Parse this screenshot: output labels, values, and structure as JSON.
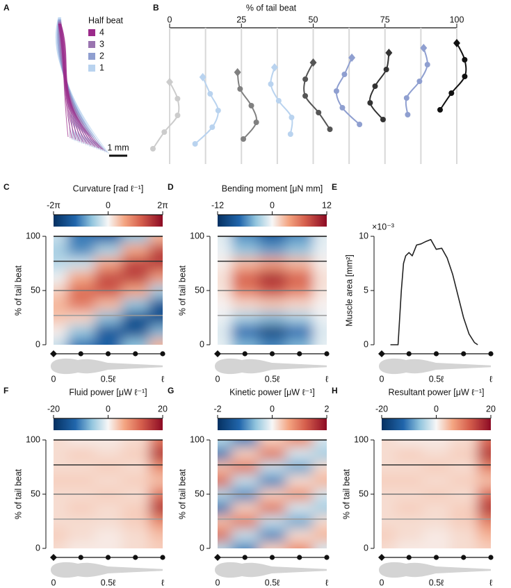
{
  "chart_data": [
    {
      "panel": "A",
      "type": "midlines",
      "legend_title": "Half beat",
      "series": [
        {
          "name": "4",
          "color": "#9b2a8a"
        },
        {
          "name": "3",
          "color": "#9a74b0"
        },
        {
          "name": "2",
          "color": "#8f9fd0"
        },
        {
          "name": "1",
          "color": "#b9d3ef"
        }
      ],
      "scale_bar_label": "1 mm"
    },
    {
      "panel": "B",
      "type": "snapshots",
      "title": "% of tail beat",
      "xlim": [
        0,
        100
      ],
      "xticks": [
        0,
        25,
        50,
        75,
        100
      ],
      "x": [
        0,
        12.5,
        25,
        37.5,
        50,
        62.5,
        75,
        87.5,
        100
      ],
      "colors": [
        "#cccccc",
        "#b9d3ef",
        "#808080",
        "#b9d3ef",
        "#555555",
        "#8f9fd0",
        "#333333",
        "#8f9fd0",
        "#111111"
      ]
    },
    {
      "panel": "C",
      "type": "heatmap",
      "title": "Curvature [rad ℓ⁻¹]",
      "clim": [
        -6.283,
        6.283
      ],
      "cticks": [
        {
          "value": -6.283,
          "label": "-2π"
        },
        0,
        {
          "value": 6.283,
          "label": "2π"
        }
      ],
      "x": [
        0,
        0.25,
        0.5,
        0.75,
        1
      ],
      "y": [
        0,
        12.5,
        25,
        37.5,
        50,
        62.5,
        75,
        87.5,
        100
      ],
      "z": [
        [
          -0.9,
          -3.4,
          -4.0,
          -1.9,
          1.5
        ],
        [
          0.2,
          -1.8,
          -4.3,
          -4.6,
          -2.2
        ],
        [
          1.2,
          0.8,
          -2.0,
          -4.6,
          -4.8
        ],
        [
          1.5,
          3.0,
          1.4,
          -1.9,
          -4.5
        ],
        [
          0.9,
          3.4,
          4.0,
          1.9,
          -1.5
        ],
        [
          -0.2,
          1.8,
          4.3,
          4.6,
          2.2
        ],
        [
          -1.2,
          -0.8,
          2.0,
          4.6,
          4.8
        ],
        [
          -1.5,
          -3.0,
          -1.4,
          1.9,
          4.5
        ],
        [
          -0.9,
          -3.4,
          -4.0,
          -1.9,
          1.5
        ]
      ],
      "ylabel": "% of tail beat",
      "ylim": [
        0,
        100
      ],
      "yticks": [
        0,
        50,
        100
      ],
      "xlim": [
        0,
        1
      ],
      "xticks": [
        0,
        {
          "value": 0.5,
          "label": "0.5ℓ"
        },
        {
          "value": 1,
          "label": "ℓ"
        }
      ],
      "markers": [
        0,
        0.25,
        0.5,
        0.75,
        1
      ],
      "hlines": [
        27,
        50,
        77,
        100
      ],
      "hline_colors": [
        "#9a9a9a",
        "#777777",
        "#333333",
        "#111111"
      ]
    },
    {
      "panel": "D",
      "type": "heatmap",
      "title": "Bending moment [μN mm]",
      "clim": [
        -12,
        12
      ],
      "cticks": [
        -12,
        0,
        12
      ],
      "x": [
        0,
        0.25,
        0.5,
        0.75,
        1
      ],
      "y": [
        0,
        12.5,
        25,
        37.5,
        50,
        62.5,
        75,
        87.5,
        100
      ],
      "z": [
        [
          -0.6,
          -4.2,
          -6,
          -4.2,
          -0.6
        ],
        [
          -1,
          -7,
          -10,
          -7,
          -1
        ],
        [
          -0.4,
          -2.8,
          -4,
          -2.8,
          -0.4
        ],
        [
          0.2,
          1.4,
          2,
          1.4,
          0.2
        ],
        [
          0.8,
          5.6,
          8,
          5.6,
          0.8
        ],
        [
          1,
          7,
          10,
          7,
          1
        ],
        [
          0.4,
          2.8,
          4,
          2.8,
          0.4
        ],
        [
          -0.5,
          -3.5,
          -5,
          -3.5,
          -0.5
        ],
        [
          -0.8,
          -5.6,
          -8,
          -5.6,
          -0.8
        ]
      ],
      "ylabel": "% of tail beat",
      "ylim": [
        0,
        100
      ],
      "yticks": [
        0,
        50,
        100
      ],
      "xlim": [
        0,
        1
      ],
      "xticks": [
        0,
        {
          "value": 0.5,
          "label": "0.5ℓ"
        },
        {
          "value": 1,
          "label": "ℓ"
        }
      ],
      "markers": [
        0,
        0.25,
        0.5,
        0.75,
        1
      ],
      "hlines": [
        27,
        50,
        77,
        100
      ],
      "hline_colors": [
        "#9a9a9a",
        "#777777",
        "#333333",
        "#111111"
      ]
    },
    {
      "panel": "E",
      "type": "line",
      "ylabel": "Muscle area [mm²]",
      "y_multiplier": "×10⁻³",
      "color": "#222222",
      "x": [
        0.08,
        0.15,
        0.18,
        0.2,
        0.22,
        0.25,
        0.28,
        0.32,
        0.36,
        0.4,
        0.45,
        0.5,
        0.55,
        0.6,
        0.65,
        0.7,
        0.75,
        0.8,
        0.85,
        0.88
      ],
      "values": [
        0,
        0,
        5,
        7.5,
        8.2,
        8.5,
        8.2,
        9.2,
        9.3,
        9.5,
        9.7,
        8.8,
        8.9,
        8.0,
        6.5,
        4.5,
        2.5,
        1.0,
        0.2,
        0
      ],
      "ylim": [
        0,
        10
      ],
      "yticks": [
        0,
        5,
        10
      ],
      "xlim": [
        0,
        1
      ],
      "xticks": [
        0,
        {
          "value": 0.5,
          "label": "0.5ℓ"
        },
        {
          "value": 1,
          "label": "ℓ"
        }
      ],
      "markers": [
        0,
        0.25,
        0.5,
        0.75,
        1
      ]
    },
    {
      "panel": "F",
      "type": "heatmap",
      "title": "Fluid power [μW ℓ⁻¹]",
      "clim": [
        -20,
        20
      ],
      "cticks": [
        -20,
        0,
        20
      ],
      "x": [
        0,
        0.25,
        0.5,
        0.75,
        1
      ],
      "y": [
        0,
        12.5,
        25,
        37.5,
        50,
        62.5,
        75,
        87.5,
        100
      ],
      "z": [
        [
          2,
          1,
          1,
          2,
          3
        ],
        [
          3,
          2,
          1,
          2,
          4
        ],
        [
          2,
          2,
          2,
          3,
          8
        ],
        [
          2,
          3,
          2,
          3,
          16
        ],
        [
          2,
          2,
          3,
          2,
          10
        ],
        [
          3,
          3,
          2,
          3,
          4
        ],
        [
          2,
          2,
          3,
          2,
          8
        ],
        [
          2,
          3,
          2,
          3,
          16
        ],
        [
          2,
          1,
          1,
          2,
          10
        ]
      ],
      "ylabel": "% of tail beat",
      "ylim": [
        0,
        100
      ],
      "yticks": [
        0,
        50,
        100
      ],
      "xlim": [
        0,
        1
      ],
      "xticks": [
        0,
        {
          "value": 0.5,
          "label": "0.5ℓ"
        },
        {
          "value": 1,
          "label": "ℓ"
        }
      ],
      "markers": [
        0,
        0.25,
        0.5,
        0.75,
        1
      ],
      "hlines": [
        27,
        50,
        77,
        100
      ],
      "hline_colors": [
        "#9a9a9a",
        "#777777",
        "#333333",
        "#111111"
      ]
    },
    {
      "panel": "G",
      "type": "heatmap",
      "title": "Kinetic power [μW ℓ⁻¹]",
      "clim": [
        -2,
        2
      ],
      "cticks": [
        -2,
        0,
        2
      ],
      "x": [
        0,
        0.25,
        0.5,
        0.75,
        1
      ],
      "y": [
        0,
        12.5,
        25,
        37.5,
        50,
        62.5,
        75,
        87.5,
        100
      ],
      "z": [
        [
          -0.4,
          -1.0,
          0.3,
          0.8,
          -0.2
        ],
        [
          1.1,
          -0.3,
          -1.0,
          0.2,
          0.5
        ],
        [
          0.4,
          1.0,
          -0.3,
          -0.8,
          0.2
        ],
        [
          -1.1,
          0.3,
          1.0,
          -0.2,
          -0.5
        ],
        [
          -0.4,
          -1.0,
          0.3,
          0.8,
          -0.2
        ],
        [
          1.1,
          -0.3,
          -1.0,
          0.2,
          0.5
        ],
        [
          0.4,
          1.0,
          -0.3,
          -0.8,
          0.2
        ],
        [
          -1.1,
          0.3,
          1.0,
          -0.2,
          -0.5
        ],
        [
          -0.4,
          -1.0,
          0.3,
          0.8,
          -0.2
        ]
      ],
      "ylabel": "% of tail beat",
      "ylim": [
        0,
        100
      ],
      "yticks": [
        0,
        50,
        100
      ],
      "xlim": [
        0,
        1
      ],
      "xticks": [
        0,
        {
          "value": 0.5,
          "label": "0.5ℓ"
        },
        {
          "value": 1,
          "label": "ℓ"
        }
      ],
      "markers": [
        0,
        0.25,
        0.5,
        0.75,
        1
      ],
      "hlines": [
        27,
        50,
        77,
        100
      ],
      "hline_colors": [
        "#9a9a9a",
        "#777777",
        "#333333",
        "#111111"
      ]
    },
    {
      "panel": "H",
      "type": "heatmap",
      "title": "Resultant power [μW ℓ⁻¹]",
      "clim": [
        -20,
        20
      ],
      "cticks": [
        -20,
        0,
        20
      ],
      "x": [
        0,
        0.25,
        0.5,
        0.75,
        1
      ],
      "y": [
        0,
        12.5,
        25,
        37.5,
        50,
        62.5,
        75,
        87.5,
        100
      ],
      "z": [
        [
          2,
          1,
          1,
          2,
          3
        ],
        [
          3,
          2,
          1,
          2,
          5
        ],
        [
          2,
          2,
          2,
          3,
          9
        ],
        [
          2,
          3,
          2,
          3,
          16
        ],
        [
          2,
          2,
          3,
          2,
          11
        ],
        [
          3,
          3,
          2,
          3,
          4
        ],
        [
          2,
          2,
          3,
          2,
          9
        ],
        [
          2,
          3,
          2,
          3,
          16
        ],
        [
          2,
          1,
          1,
          2,
          11
        ]
      ],
      "ylabel": "% of tail beat",
      "ylim": [
        0,
        100
      ],
      "yticks": [
        0,
        50,
        100
      ],
      "xlim": [
        0,
        1
      ],
      "xticks": [
        0,
        {
          "value": 0.5,
          "label": "0.5ℓ"
        },
        {
          "value": 1,
          "label": "ℓ"
        }
      ],
      "markers": [
        0,
        0.25,
        0.5,
        0.75,
        1
      ],
      "hlines": [
        27,
        50,
        77,
        100
      ],
      "hline_colors": [
        "#9a9a9a",
        "#777777",
        "#333333",
        "#111111"
      ]
    }
  ]
}
